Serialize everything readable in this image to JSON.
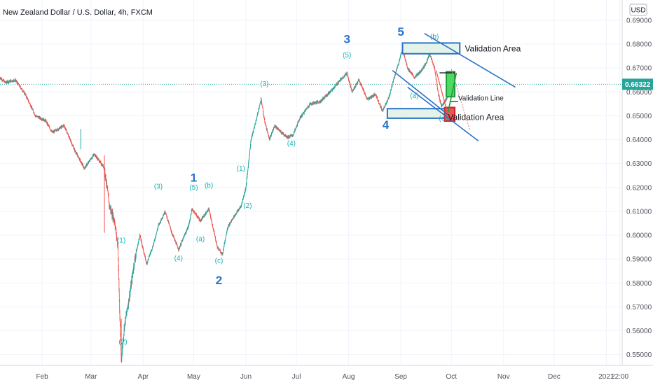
{
  "header": {
    "title": "New Zealand Dollar / U.S. Dollar, 4h, FXCM"
  },
  "currency_button": "USD",
  "colors": {
    "up": "#26a69a",
    "down": "#ef5350",
    "wave_major": "#2a72c8",
    "wave_minor": "#16b3b3",
    "channel": "#2a72c8",
    "price_tag": "#26a69a"
  },
  "chart_data": {
    "type": "candlestick",
    "symbol": "NZDUSD",
    "timeframe": "4h",
    "title": "New Zealand Dollar / U.S. Dollar, 4h, FXCM",
    "last_price": 0.66322,
    "last_price_label": "0.66322",
    "ylim": [
      0.5455,
      0.6985
    ],
    "y_ticks": [
      0.55,
      0.56,
      0.57,
      0.58,
      0.59,
      0.6,
      0.61,
      0.62,
      0.63,
      0.64,
      0.65,
      0.66,
      0.67,
      0.68,
      0.69
    ],
    "y_tick_labels": [
      "0.55000",
      "0.56000",
      "0.57000",
      "0.58000",
      "0.59000",
      "0.60000",
      "0.61000",
      "0.62000",
      "0.63000",
      "0.64000",
      "0.65000",
      "0.66000",
      "0.67000",
      "0.68000",
      "0.69000"
    ],
    "x_axis": {
      "range": [
        "2020-01-07",
        "2021-01-10"
      ],
      "ticks": [
        {
          "date": "2020-02-01",
          "label": "Feb"
        },
        {
          "date": "2020-03-01",
          "label": "Mar"
        },
        {
          "date": "2020-04-01",
          "label": "Apr"
        },
        {
          "date": "2020-05-01",
          "label": "May"
        },
        {
          "date": "2020-06-01",
          "label": "Jun"
        },
        {
          "date": "2020-07-01",
          "label": "Jul"
        },
        {
          "date": "2020-08-01",
          "label": "Aug"
        },
        {
          "date": "2020-09-01",
          "label": "Sep"
        },
        {
          "date": "2020-10-01",
          "label": "Oct"
        },
        {
          "date": "2020-11-01",
          "label": "Nov"
        },
        {
          "date": "2020-12-01",
          "label": "Dec"
        },
        {
          "date": "2021-01-01",
          "label": "2021"
        },
        {
          "date": "2021-01-09",
          "label": "22:00"
        }
      ]
    },
    "price_path": [
      [
        "2020-01-07",
        0.666
      ],
      [
        "2020-01-10",
        0.664
      ],
      [
        "2020-01-16",
        0.665
      ],
      [
        "2020-01-22",
        0.659
      ],
      [
        "2020-01-28",
        0.65
      ],
      [
        "2020-02-03",
        0.648
      ],
      [
        "2020-02-07",
        0.643
      ],
      [
        "2020-02-14",
        0.646
      ],
      [
        "2020-02-20",
        0.636
      ],
      [
        "2020-02-26",
        0.628
      ],
      [
        "2020-03-03",
        0.634
      ],
      [
        "2020-03-09",
        0.628
      ],
      [
        "2020-03-12",
        0.612
      ],
      [
        "2020-03-15",
        0.606
      ],
      [
        "2020-03-17",
        0.595
      ],
      [
        "2020-03-18",
        0.568
      ],
      [
        "2020-03-19",
        0.548
      ],
      [
        "2020-03-21",
        0.563
      ],
      [
        "2020-03-24",
        0.575
      ],
      [
        "2020-03-27",
        0.59
      ],
      [
        "2020-03-30",
        0.6
      ],
      [
        "2020-04-03",
        0.588
      ],
      [
        "2020-04-07",
        0.596
      ],
      [
        "2020-04-10",
        0.604
      ],
      [
        "2020-04-14",
        0.61
      ],
      [
        "2020-04-18",
        0.601
      ],
      [
        "2020-04-22",
        0.594
      ],
      [
        "2020-04-25",
        0.599
      ],
      [
        "2020-04-28",
        0.604
      ],
      [
        "2020-04-30",
        0.611
      ],
      [
        "2020-05-05",
        0.606
      ],
      [
        "2020-05-10",
        0.611
      ],
      [
        "2020-05-15",
        0.595
      ],
      [
        "2020-05-18",
        0.592
      ],
      [
        "2020-05-21",
        0.603
      ],
      [
        "2020-05-25",
        0.608
      ],
      [
        "2020-05-29",
        0.612
      ],
      [
        "2020-06-01",
        0.62
      ],
      [
        "2020-06-04",
        0.64
      ],
      [
        "2020-06-07",
        0.648
      ],
      [
        "2020-06-10",
        0.657
      ],
      [
        "2020-06-12",
        0.648
      ],
      [
        "2020-06-15",
        0.64
      ],
      [
        "2020-06-18",
        0.646
      ],
      [
        "2020-06-22",
        0.643
      ],
      [
        "2020-06-26",
        0.641
      ],
      [
        "2020-06-29",
        0.642
      ],
      [
        "2020-07-03",
        0.649
      ],
      [
        "2020-07-09",
        0.655
      ],
      [
        "2020-07-15",
        0.656
      ],
      [
        "2020-07-21",
        0.66
      ],
      [
        "2020-07-27",
        0.665
      ],
      [
        "2020-07-31",
        0.668
      ],
      [
        "2020-08-03",
        0.66
      ],
      [
        "2020-08-07",
        0.665
      ],
      [
        "2020-08-12",
        0.657
      ],
      [
        "2020-08-17",
        0.659
      ],
      [
        "2020-08-21",
        0.652
      ],
      [
        "2020-08-25",
        0.658
      ],
      [
        "2020-08-28",
        0.666
      ],
      [
        "2020-08-31",
        0.673
      ],
      [
        "2020-09-02",
        0.678
      ],
      [
        "2020-09-05",
        0.67
      ],
      [
        "2020-09-09",
        0.666
      ],
      [
        "2020-09-12",
        0.668
      ],
      [
        "2020-09-16",
        0.672
      ],
      [
        "2020-09-18",
        0.676
      ],
      [
        "2020-09-21",
        0.67
      ],
      [
        "2020-09-23",
        0.66
      ],
      [
        "2020-09-25",
        0.654
      ],
      [
        "2020-09-28",
        0.657
      ],
      [
        "2020-10-01",
        0.662
      ],
      [
        "2020-10-02",
        0.6632
      ]
    ],
    "wave_labels_major": [
      {
        "text": "1",
        "date": "2020-05-01",
        "price": 0.6225
      },
      {
        "text": "2",
        "date": "2020-05-16",
        "price": 0.5795
      },
      {
        "text": "3",
        "date": "2020-07-31",
        "price": 0.6805
      },
      {
        "text": "4",
        "date": "2020-08-23",
        "price": 0.6445
      },
      {
        "text": "5",
        "date": "2020-09-01",
        "price": 0.6835
      }
    ],
    "wave_labels_minor": [
      {
        "text": "(3)",
        "date": "2020-04-10",
        "price": 0.6195
      },
      {
        "text": "(5)",
        "date": "2020-05-01",
        "price": 0.619
      },
      {
        "text": "(b)",
        "date": "2020-05-10",
        "price": 0.62
      },
      {
        "text": "(a)",
        "date": "2020-05-05",
        "price": 0.5975
      },
      {
        "text": "(4)",
        "date": "2020-04-22",
        "price": 0.5895
      },
      {
        "text": "(c)",
        "date": "2020-05-16",
        "price": 0.5885
      },
      {
        "text": "(1)",
        "date": "2020-03-19",
        "price": 0.597
      },
      {
        "text": "(2)",
        "date": "2020-03-20",
        "price": 0.5545
      },
      {
        "text": "(1)",
        "date": "2020-05-29",
        "price": 0.627
      },
      {
        "text": "(2)",
        "date": "2020-06-02",
        "price": 0.6115
      },
      {
        "text": "(3)",
        "date": "2020-06-12",
        "price": 0.6625
      },
      {
        "text": "(4)",
        "date": "2020-06-28",
        "price": 0.6375
      },
      {
        "text": "(5)",
        "date": "2020-07-31",
        "price": 0.6745
      },
      {
        "text": "(a)",
        "date": "2020-09-09",
        "price": 0.6575
      },
      {
        "text": "(b)",
        "date": "2020-09-21",
        "price": 0.6823
      },
      {
        "text": "(c)",
        "date": "2020-09-26",
        "price": 0.648
      }
    ],
    "annotations": {
      "top_validation_label": "Validation Area",
      "bottom_validation_label": "Validation Area",
      "validation_line_label": "Validation Line"
    }
  }
}
